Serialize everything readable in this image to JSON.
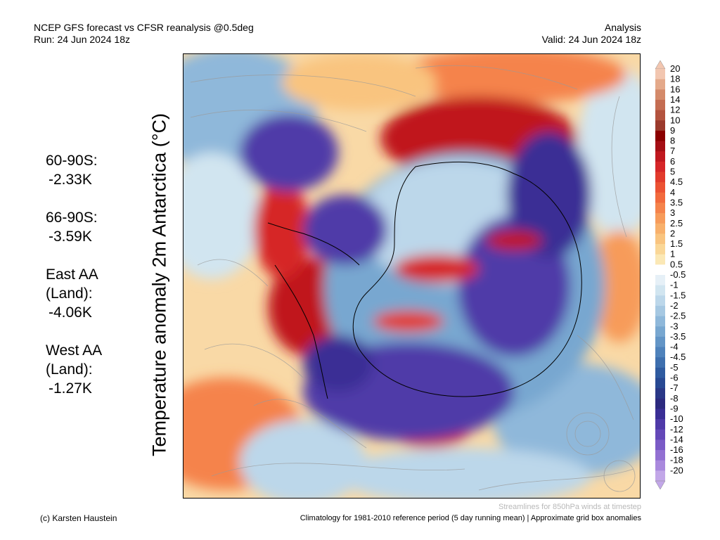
{
  "header": {
    "title_line1": "NCEP GFS forecast vs CFSR reanalysis @0.5deg",
    "title_line2": "Run: 24 Jun 2024 18z",
    "right_line1": "Analysis",
    "right_line2": "Valid: 24 Jun 2024 18z"
  },
  "axis_label": "Temperature anomaly 2m Antarctica (°C)",
  "stats": [
    {
      "label": "60-90S:",
      "value": "-2.33K"
    },
    {
      "label": "66-90S:",
      "value": "-3.59K"
    },
    {
      "label": "East AA\n(Land):",
      "value": "-4.06K"
    },
    {
      "label": "West AA\n(Land):",
      "value": "-1.27K"
    }
  ],
  "map": {
    "projection": "south-polar-stereographic",
    "overlay": "streamlines",
    "coastline_color": "#000000"
  },
  "colorbar": {
    "labels": [
      "20",
      "18",
      "16",
      "14",
      "12",
      "10",
      "9",
      "8",
      "7",
      "6",
      "5",
      "4.5",
      "4",
      "3.5",
      "3",
      "2.5",
      "2",
      "1.5",
      "1",
      "0.5",
      "-0.5",
      "-1",
      "-1.5",
      "-2",
      "-2.5",
      "-3",
      "-3.5",
      "-4",
      "-4.5",
      "-5",
      "-6",
      "-7",
      "-8",
      "-9",
      "-10",
      "-12",
      "-14",
      "-16",
      "-18",
      "-20"
    ],
    "colors": [
      "#f2c6b0",
      "#e4a98a",
      "#d48a6a",
      "#c46d52",
      "#b3533e",
      "#9b3a2c",
      "#8b0000",
      "#a50f15",
      "#c0181f",
      "#d62628",
      "#e23b2c",
      "#ec5233",
      "#f26a3d",
      "#f5834b",
      "#f79b5a",
      "#f8b06b",
      "#f9c47f",
      "#fad797",
      "#fbe8b5",
      "#ffffff",
      "#e6f0f7",
      "#d1e5f0",
      "#bcd7ea",
      "#a6c8e2",
      "#8fb8da",
      "#78a7d0",
      "#6395c6",
      "#4f82bb",
      "#3e6fae",
      "#2f5ba0",
      "#284993",
      "#2a3887",
      "#2c2a7f",
      "#3a2e95",
      "#4f3aa8",
      "#6448b8",
      "#7a5bc6",
      "#9270d2",
      "#a989dd",
      "#c2a7e8"
    ]
  },
  "footer": {
    "streamlines_note": "Streamlines for 850hPa winds at timestep",
    "credit": "(c) Karsten Haustein",
    "climatology": "Climatology for 1981-2010 reference period (5 day running mean) | Approximate grid box anomalies"
  }
}
